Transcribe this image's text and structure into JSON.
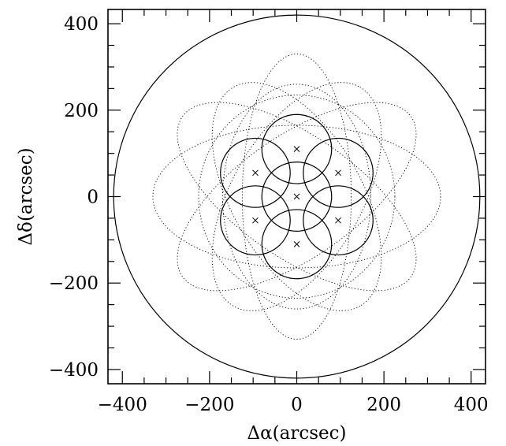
{
  "chart_data": {
    "type": "scatter",
    "xlabel": "Δα(arcsec)",
    "ylabel": "Δδ(arcsec)",
    "xlim": [
      -433,
      433
    ],
    "ylim": [
      -433,
      433
    ],
    "xticks": [
      -400,
      -200,
      0,
      200,
      400
    ],
    "yticks": [
      -400,
      -200,
      0,
      200,
      400
    ],
    "xtick_labels": [
      "−400",
      "−200",
      "0",
      "200",
      "400"
    ],
    "ytick_labels": [
      "−400",
      "−200",
      "0",
      "200",
      "400"
    ],
    "minor_tick_step": 50,
    "grid": false,
    "points": {
      "marker": "x",
      "x": [
        0,
        95,
        95,
        0,
        -95,
        -95,
        0
      ],
      "y": [
        110,
        55,
        -55,
        -110,
        -55,
        55,
        0
      ]
    },
    "circles": [
      {
        "style": "solid",
        "cx": 0,
        "cy": 0,
        "r": 420
      },
      {
        "style": "solid",
        "cx": 0,
        "cy": 0,
        "r": 80
      },
      {
        "style": "solid",
        "cx": 0,
        "cy": 110,
        "r": 80
      },
      {
        "style": "solid",
        "cx": 95,
        "cy": 55,
        "r": 80
      },
      {
        "style": "solid",
        "cx": 95,
        "cy": -55,
        "r": 80
      },
      {
        "style": "solid",
        "cx": 0,
        "cy": -110,
        "r": 80
      },
      {
        "style": "solid",
        "cx": -95,
        "cy": -55,
        "r": 80
      },
      {
        "style": "solid",
        "cx": -95,
        "cy": 55,
        "r": 80
      }
    ],
    "ellipses": [
      {
        "style": "dotted",
        "cx": 0,
        "cy": 0,
        "rx": 125,
        "ry": 330
      },
      {
        "style": "dotted",
        "cx": 0,
        "cy": 0,
        "rx": 330,
        "ry": 165
      },
      {
        "style": "dotted",
        "cx": 0,
        "cy": 0,
        "rx": 225,
        "ry": 235,
        "rot": 0
      },
      {
        "style": "dotted",
        "cx": 0,
        "cy": 0,
        "rx": 320,
        "ry": 140,
        "rot": 35
      },
      {
        "style": "dotted",
        "cx": 0,
        "cy": 0,
        "rx": 320,
        "ry": 140,
        "rot": -35
      },
      {
        "style": "dotted",
        "cx": 0,
        "cy": 0,
        "rx": 290,
        "ry": 150,
        "rot": 60
      },
      {
        "style": "dotted",
        "cx": 0,
        "cy": 0,
        "rx": 290,
        "ry": 150,
        "rot": -60
      },
      {
        "style": "dotted",
        "cx": 0,
        "cy": 0,
        "rx": 170,
        "ry": 260,
        "rot": 0
      }
    ]
  }
}
